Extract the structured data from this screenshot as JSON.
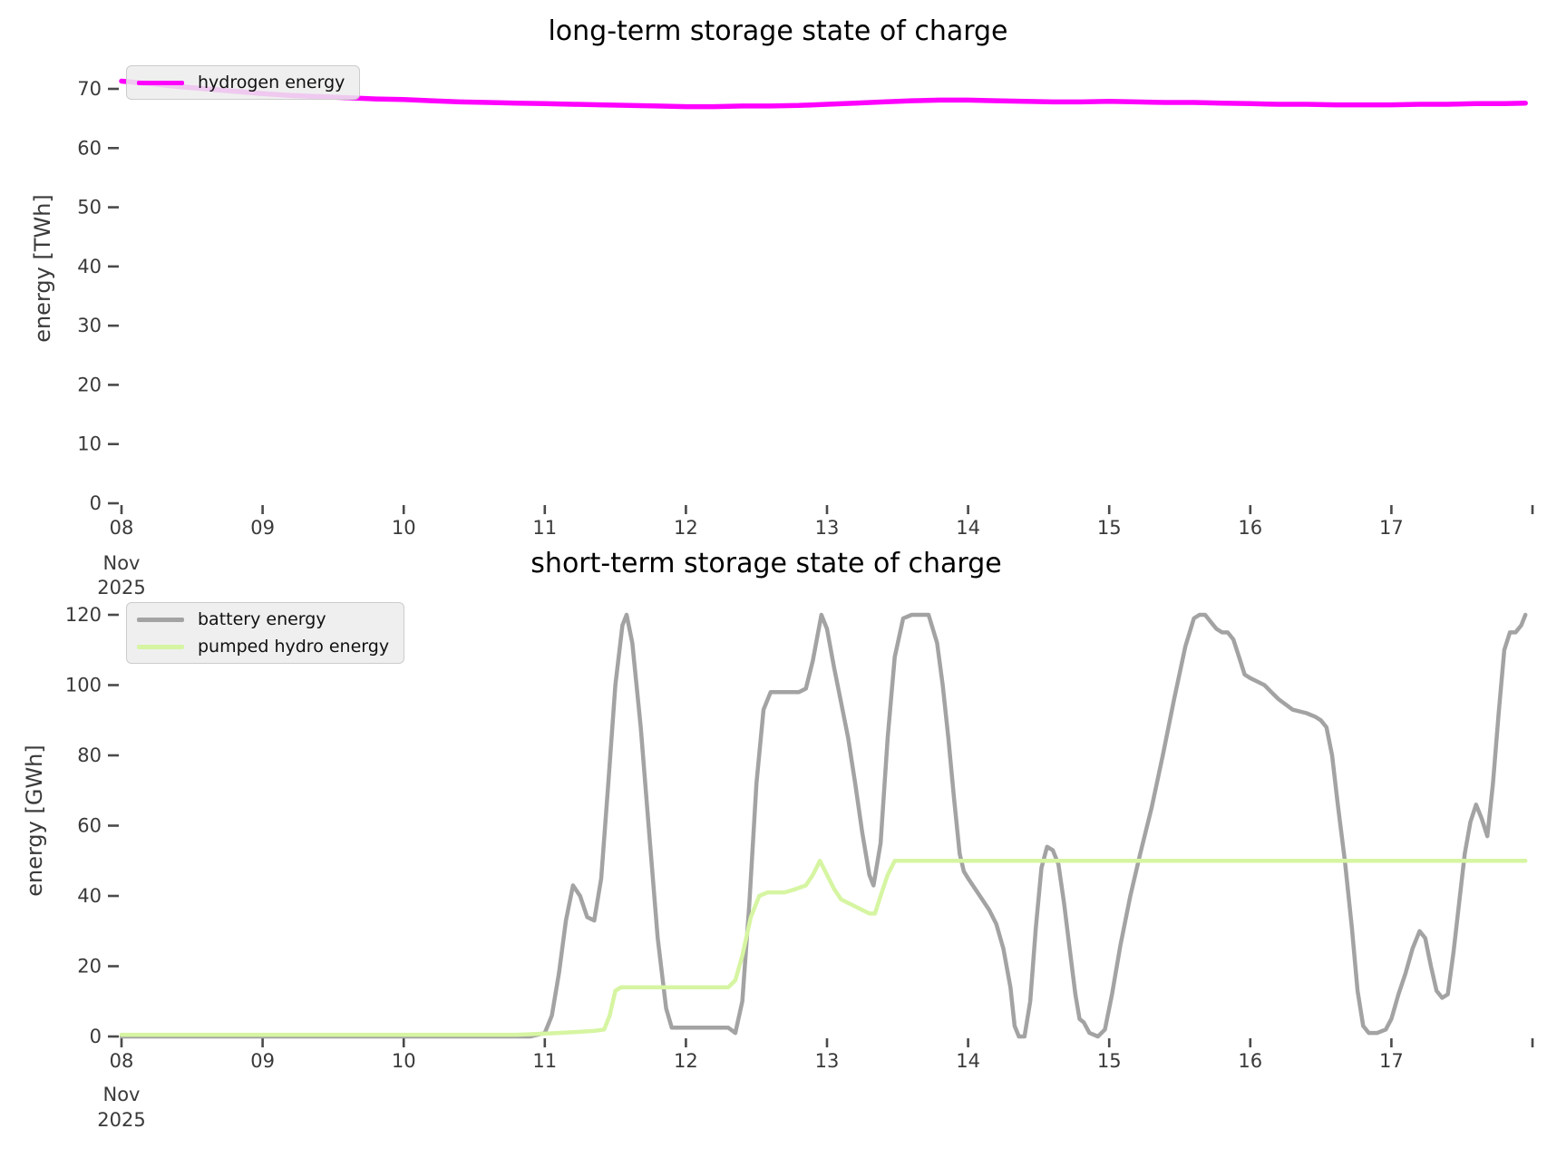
{
  "figure": {
    "background": "#ffffff",
    "tick_color": "#4a4a4a",
    "tick_label_color": "#3a3a3a"
  },
  "chart_data": [
    {
      "type": "line",
      "title": "long-term storage state of charge",
      "ylabel": "energy [TWh]",
      "x_axis": {
        "tick_labels": [
          "08",
          "09",
          "10",
          "11",
          "12",
          "13",
          "14",
          "15",
          "16",
          "17"
        ],
        "sublabels": [
          "Nov",
          "2025"
        ],
        "range_days": [
          8,
          18
        ],
        "grid": false
      },
      "y_axis": {
        "ticks": [
          0,
          10,
          20,
          30,
          40,
          50,
          60,
          70
        ],
        "range": [
          0,
          73
        ]
      },
      "legend": {
        "position": "upper-left"
      },
      "series": [
        {
          "name": "hydrogen-energy",
          "label": "hydrogen energy",
          "color": "#ff00ff",
          "width": 5.5,
          "points": [
            [
              8.0,
              71.3
            ],
            [
              8.2,
              70.9
            ],
            [
              8.4,
              70.4
            ],
            [
              8.6,
              70.0
            ],
            [
              8.8,
              69.6
            ],
            [
              9.0,
              69.2
            ],
            [
              9.2,
              68.9
            ],
            [
              9.4,
              68.7
            ],
            [
              9.6,
              68.5
            ],
            [
              9.8,
              68.3
            ],
            [
              10.0,
              68.2
            ],
            [
              10.2,
              68.0
            ],
            [
              10.4,
              67.8
            ],
            [
              10.6,
              67.7
            ],
            [
              10.8,
              67.6
            ],
            [
              11.0,
              67.5
            ],
            [
              11.2,
              67.4
            ],
            [
              11.4,
              67.3
            ],
            [
              11.6,
              67.2
            ],
            [
              11.8,
              67.1
            ],
            [
              12.0,
              67.0
            ],
            [
              12.2,
              67.0
            ],
            [
              12.4,
              67.1
            ],
            [
              12.6,
              67.1
            ],
            [
              12.8,
              67.2
            ],
            [
              13.0,
              67.4
            ],
            [
              13.2,
              67.6
            ],
            [
              13.4,
              67.8
            ],
            [
              13.6,
              68.0
            ],
            [
              13.8,
              68.1
            ],
            [
              14.0,
              68.1
            ],
            [
              14.2,
              68.0
            ],
            [
              14.4,
              67.9
            ],
            [
              14.6,
              67.8
            ],
            [
              14.8,
              67.8
            ],
            [
              15.0,
              67.9
            ],
            [
              15.2,
              67.8
            ],
            [
              15.4,
              67.7
            ],
            [
              15.6,
              67.7
            ],
            [
              15.8,
              67.6
            ],
            [
              16.0,
              67.5
            ],
            [
              16.2,
              67.4
            ],
            [
              16.4,
              67.4
            ],
            [
              16.6,
              67.3
            ],
            [
              16.8,
              67.3
            ],
            [
              17.0,
              67.3
            ],
            [
              17.2,
              67.4
            ],
            [
              17.4,
              67.4
            ],
            [
              17.6,
              67.5
            ],
            [
              17.8,
              67.5
            ],
            [
              17.95,
              67.6
            ]
          ]
        }
      ]
    },
    {
      "type": "line",
      "title": "short-term storage state of charge",
      "ylabel": "energy [GWh]",
      "x_axis": {
        "tick_labels": [
          "08",
          "09",
          "10",
          "11",
          "12",
          "13",
          "14",
          "15",
          "16",
          "17"
        ],
        "sublabels": [
          "Nov",
          "2025"
        ],
        "range_days": [
          8,
          18
        ],
        "grid": false
      },
      "y_axis": {
        "ticks": [
          0,
          20,
          40,
          60,
          80,
          100,
          120
        ],
        "range": [
          0,
          120
        ]
      },
      "legend": {
        "position": "upper-left"
      },
      "series": [
        {
          "name": "battery-energy",
          "label": "battery energy",
          "color": "#a3a3a3",
          "width": 4.5,
          "points": [
            [
              8.0,
              0
            ],
            [
              8.5,
              0
            ],
            [
              9.0,
              0
            ],
            [
              9.5,
              0
            ],
            [
              10.0,
              0
            ],
            [
              10.5,
              0
            ],
            [
              10.9,
              0
            ],
            [
              11.0,
              1
            ],
            [
              11.05,
              6
            ],
            [
              11.1,
              18
            ],
            [
              11.15,
              33
            ],
            [
              11.2,
              43
            ],
            [
              11.25,
              40
            ],
            [
              11.3,
              34
            ],
            [
              11.35,
              33
            ],
            [
              11.4,
              45
            ],
            [
              11.45,
              72
            ],
            [
              11.5,
              100
            ],
            [
              11.55,
              117
            ],
            [
              11.58,
              120
            ],
            [
              11.62,
              112
            ],
            [
              11.68,
              88
            ],
            [
              11.74,
              58
            ],
            [
              11.8,
              28
            ],
            [
              11.86,
              8
            ],
            [
              11.9,
              2.5
            ],
            [
              12.0,
              2.5
            ],
            [
              12.1,
              2.5
            ],
            [
              12.2,
              2.5
            ],
            [
              12.3,
              2.5
            ],
            [
              12.35,
              1
            ],
            [
              12.4,
              10
            ],
            [
              12.45,
              38
            ],
            [
              12.5,
              72
            ],
            [
              12.55,
              93
            ],
            [
              12.6,
              98
            ],
            [
              12.7,
              98
            ],
            [
              12.8,
              98
            ],
            [
              12.85,
              99
            ],
            [
              12.9,
              107
            ],
            [
              12.96,
              120
            ],
            [
              13.0,
              116
            ],
            [
              13.05,
              105
            ],
            [
              13.1,
              95
            ],
            [
              13.15,
              85
            ],
            [
              13.2,
              72
            ],
            [
              13.25,
              58
            ],
            [
              13.3,
              46
            ],
            [
              13.33,
              43
            ],
            [
              13.38,
              55
            ],
            [
              13.43,
              85
            ],
            [
              13.48,
              108
            ],
            [
              13.54,
              119
            ],
            [
              13.6,
              120
            ],
            [
              13.72,
              120
            ],
            [
              13.78,
              112
            ],
            [
              13.82,
              100
            ],
            [
              13.86,
              85
            ],
            [
              13.9,
              68
            ],
            [
              13.94,
              52
            ],
            [
              13.97,
              47
            ],
            [
              14.0,
              45
            ],
            [
              14.05,
              42
            ],
            [
              14.1,
              39
            ],
            [
              14.15,
              36
            ],
            [
              14.2,
              32
            ],
            [
              14.25,
              25
            ],
            [
              14.3,
              14
            ],
            [
              14.33,
              3
            ],
            [
              14.36,
              0
            ],
            [
              14.4,
              0
            ],
            [
              14.44,
              10
            ],
            [
              14.48,
              31
            ],
            [
              14.52,
              48
            ],
            [
              14.56,
              54
            ],
            [
              14.6,
              53
            ],
            [
              14.64,
              49
            ],
            [
              14.68,
              38
            ],
            [
              14.72,
              25
            ],
            [
              14.76,
              12
            ],
            [
              14.79,
              5
            ],
            [
              14.82,
              4
            ],
            [
              14.86,
              1
            ],
            [
              14.92,
              0
            ],
            [
              14.97,
              2
            ],
            [
              15.02,
              12
            ],
            [
              15.08,
              26
            ],
            [
              15.15,
              40
            ],
            [
              15.22,
              52
            ],
            [
              15.3,
              65
            ],
            [
              15.38,
              80
            ],
            [
              15.46,
              96
            ],
            [
              15.54,
              111
            ],
            [
              15.6,
              119
            ],
            [
              15.64,
              120
            ],
            [
              15.68,
              120
            ],
            [
              15.72,
              118
            ],
            [
              15.76,
              116
            ],
            [
              15.8,
              115
            ],
            [
              15.84,
              115
            ],
            [
              15.88,
              113
            ],
            [
              15.92,
              108
            ],
            [
              15.96,
              103
            ],
            [
              16.0,
              102
            ],
            [
              16.05,
              101
            ],
            [
              16.1,
              100
            ],
            [
              16.15,
              98
            ],
            [
              16.2,
              96
            ],
            [
              16.3,
              93
            ],
            [
              16.4,
              92
            ],
            [
              16.46,
              91
            ],
            [
              16.5,
              90
            ],
            [
              16.54,
              88
            ],
            [
              16.58,
              80
            ],
            [
              16.62,
              66
            ],
            [
              16.67,
              50
            ],
            [
              16.72,
              31
            ],
            [
              16.76,
              13
            ],
            [
              16.8,
              3
            ],
            [
              16.84,
              1
            ],
            [
              16.9,
              1
            ],
            [
              16.96,
              2
            ],
            [
              17.0,
              5
            ],
            [
              17.05,
              12
            ],
            [
              17.1,
              18
            ],
            [
              17.15,
              25
            ],
            [
              17.2,
              30
            ],
            [
              17.24,
              28
            ],
            [
              17.28,
              20
            ],
            [
              17.32,
              13
            ],
            [
              17.36,
              11
            ],
            [
              17.4,
              12
            ],
            [
              17.44,
              24
            ],
            [
              17.48,
              38
            ],
            [
              17.52,
              52
            ],
            [
              17.56,
              61
            ],
            [
              17.6,
              66
            ],
            [
              17.64,
              62
            ],
            [
              17.68,
              57
            ],
            [
              17.72,
              72
            ],
            [
              17.76,
              92
            ],
            [
              17.8,
              110
            ],
            [
              17.84,
              115
            ],
            [
              17.88,
              115
            ],
            [
              17.92,
              117
            ],
            [
              17.95,
              120
            ]
          ]
        },
        {
          "name": "pumped-hydro-energy",
          "label": "pumped hydro energy",
          "color": "#d6f5a2",
          "width": 4.5,
          "points": [
            [
              8.0,
              0.5
            ],
            [
              8.5,
              0.5
            ],
            [
              9.0,
              0.5
            ],
            [
              9.5,
              0.5
            ],
            [
              10.0,
              0.5
            ],
            [
              10.5,
              0.5
            ],
            [
              10.8,
              0.5
            ],
            [
              11.0,
              0.8
            ],
            [
              11.2,
              1.2
            ],
            [
              11.35,
              1.6
            ],
            [
              11.42,
              2
            ],
            [
              11.46,
              6
            ],
            [
              11.5,
              13
            ],
            [
              11.54,
              14
            ],
            [
              12.0,
              14
            ],
            [
              12.3,
              14
            ],
            [
              12.35,
              16
            ],
            [
              12.4,
              23
            ],
            [
              12.46,
              34
            ],
            [
              12.52,
              40
            ],
            [
              12.58,
              41
            ],
            [
              12.7,
              41
            ],
            [
              12.78,
              42
            ],
            [
              12.85,
              43
            ],
            [
              12.9,
              46
            ],
            [
              12.95,
              50
            ],
            [
              13.0,
              46
            ],
            [
              13.05,
              42
            ],
            [
              13.1,
              39
            ],
            [
              13.15,
              38
            ],
            [
              13.2,
              37
            ],
            [
              13.25,
              36
            ],
            [
              13.3,
              35
            ],
            [
              13.34,
              35
            ],
            [
              13.38,
              40
            ],
            [
              13.43,
              46
            ],
            [
              13.48,
              50
            ],
            [
              14.0,
              50
            ],
            [
              14.5,
              50
            ],
            [
              15.0,
              50
            ],
            [
              15.5,
              50
            ],
            [
              16.0,
              50
            ],
            [
              16.5,
              50
            ],
            [
              17.0,
              50
            ],
            [
              17.5,
              50
            ],
            [
              17.95,
              50
            ]
          ]
        }
      ]
    }
  ]
}
